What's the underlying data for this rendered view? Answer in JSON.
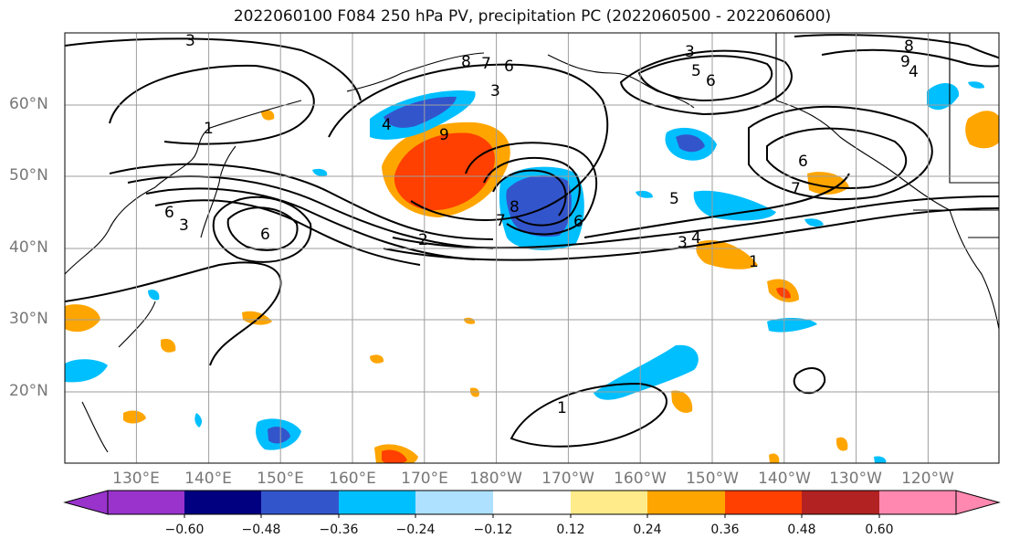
{
  "title": "2022060100 F084 250 hPa PV, precipitation PC (2022060500 - 2022060600)",
  "lat_labels": [
    "60°N",
    "50°N",
    "40°N",
    "30°N",
    "20°N"
  ],
  "lon_labels": [
    "130°E",
    "140°E",
    "150°E",
    "160°E",
    "170°E",
    "180°W",
    "170°W",
    "160°W",
    "150°W",
    "140°W",
    "130°W",
    "120°W"
  ],
  "colorbar": {
    "colors": [
      "#9933cc",
      "#000080",
      "#3355cc",
      "#00bfff",
      "#aee0ff",
      "#ffffff",
      "#ffeb8a",
      "#ffa500",
      "#ff4000",
      "#b22222",
      "#ff88b0"
    ],
    "labels": [
      "−0.60",
      "−0.48",
      "−0.36",
      "−0.24",
      "−0.12",
      "0.12",
      "0.24",
      "0.36",
      "0.48",
      "0.60"
    ]
  },
  "contour_labels": [
    "3",
    "8",
    "7",
    "6",
    "3",
    "3",
    "5",
    "6",
    "8",
    "9",
    "4",
    "1",
    "4",
    "9",
    "6",
    "3",
    "6",
    "2",
    "8",
    "7",
    "6",
    "5",
    "3",
    "4",
    "1",
    "6",
    "7",
    "1"
  ]
}
